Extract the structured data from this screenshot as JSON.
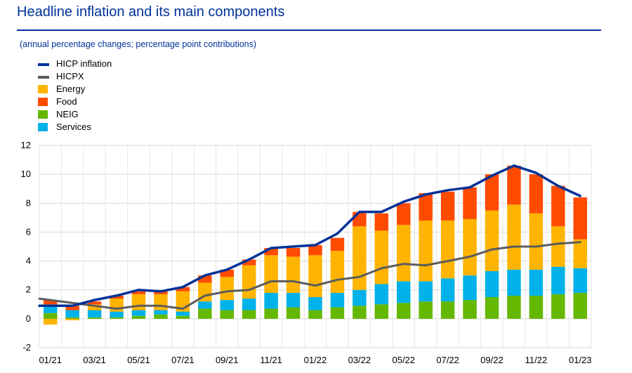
{
  "header": {
    "title": "Headline inflation and its main components",
    "subtitle": "(annual percentage changes; percentage point contributions)"
  },
  "legend": [
    {
      "label": "HICP inflation",
      "kind": "line",
      "color": "#003299"
    },
    {
      "label": "HICPX",
      "kind": "line",
      "color": "#5c5c5c"
    },
    {
      "label": "Energy",
      "kind": "box",
      "color": "#ffb400"
    },
    {
      "label": "Food",
      "kind": "box",
      "color": "#ff4b00"
    },
    {
      "label": "NEIG",
      "kind": "box",
      "color": "#65b800"
    },
    {
      "label": "Services",
      "kind": "box",
      "color": "#00b1ea"
    }
  ],
  "chart_data": {
    "type": "bar",
    "stacked": true,
    "x": [
      "01/21",
      "02/21",
      "03/21",
      "04/21",
      "05/21",
      "06/21",
      "07/21",
      "08/21",
      "09/21",
      "10/21",
      "11/21",
      "12/21",
      "01/22",
      "02/22",
      "03/22",
      "04/22",
      "05/22",
      "06/22",
      "07/22",
      "08/22",
      "09/22",
      "10/22",
      "11/22",
      "12/22",
      "01/23"
    ],
    "x_tick_labels": [
      "01/21",
      "03/21",
      "05/21",
      "07/21",
      "09/21",
      "11/21",
      "01/22",
      "03/22",
      "05/22",
      "07/22",
      "09/22",
      "11/22",
      "01/23"
    ],
    "ylim": [
      -2,
      12
    ],
    "y_ticks": [
      -2,
      0,
      2,
      4,
      6,
      8,
      10,
      12
    ],
    "grid": true,
    "bar_series": [
      {
        "name": "NEIG",
        "color": "#65b800",
        "values": [
          0.4,
          0.1,
          0.1,
          0.1,
          0.2,
          0.3,
          0.2,
          0.7,
          0.6,
          0.6,
          0.7,
          0.8,
          0.6,
          0.8,
          0.9,
          1.0,
          1.1,
          1.2,
          1.2,
          1.3,
          1.5,
          1.6,
          1.6,
          1.7,
          1.8
        ]
      },
      {
        "name": "Services",
        "color": "#00b1ea",
        "values": [
          0.6,
          0.5,
          0.5,
          0.4,
          0.4,
          0.3,
          0.3,
          0.5,
          0.7,
          0.8,
          1.1,
          1.0,
          0.9,
          1.0,
          1.1,
          1.4,
          1.5,
          1.4,
          1.6,
          1.7,
          1.8,
          1.8,
          1.8,
          1.9,
          1.7
        ]
      },
      {
        "name": "Energy",
        "color": "#ffb400",
        "values": [
          -0.4,
          -0.1,
          0.4,
          0.9,
          1.1,
          1.1,
          1.4,
          1.3,
          1.6,
          2.3,
          2.6,
          2.5,
          2.9,
          2.9,
          4.4,
          3.7,
          3.9,
          4.2,
          4.0,
          3.9,
          4.2,
          4.5,
          3.9,
          2.8,
          2.0
        ]
      },
      {
        "name": "Food",
        "color": "#ff4b00",
        "values": [
          0.3,
          0.3,
          0.2,
          0.2,
          0.2,
          0.2,
          0.3,
          0.5,
          0.5,
          0.4,
          0.5,
          0.6,
          0.7,
          0.9,
          1.0,
          1.2,
          1.5,
          1.9,
          2.0,
          2.2,
          2.5,
          2.7,
          2.7,
          2.8,
          2.9
        ]
      }
    ],
    "line_series": [
      {
        "name": "HICP inflation",
        "color": "#003299",
        "values": [
          0.9,
          0.9,
          1.3,
          1.6,
          2.0,
          1.9,
          2.2,
          3.0,
          3.4,
          4.1,
          4.9,
          5.0,
          5.1,
          5.9,
          7.4,
          7.4,
          8.1,
          8.6,
          8.9,
          9.1,
          9.9,
          10.6,
          10.1,
          9.2,
          8.5
        ]
      },
      {
        "name": "HICPX",
        "color": "#5c5c5c",
        "values": [
          1.4,
          1.1,
          0.9,
          0.7,
          0.9,
          0.9,
          0.7,
          1.6,
          1.9,
          2.0,
          2.6,
          2.6,
          2.3,
          2.7,
          2.9,
          3.5,
          3.8,
          3.7,
          4.0,
          4.3,
          4.8,
          5.0,
          5.0,
          5.2,
          5.3
        ]
      }
    ]
  }
}
